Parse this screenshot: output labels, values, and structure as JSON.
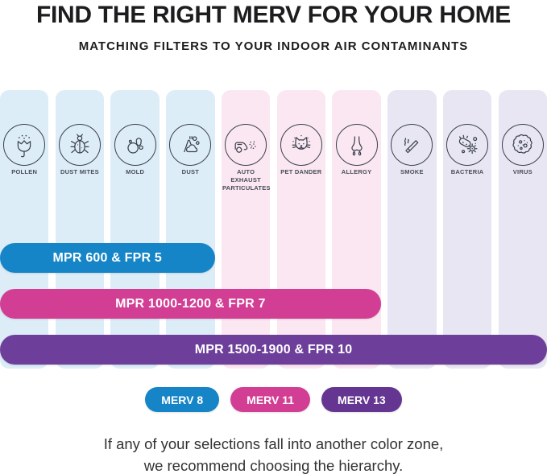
{
  "header": {
    "title": "FIND THE RIGHT MERV FOR YOUR HOME",
    "subtitle": "MATCHING FILTERS TO YOUR INDOOR AIR CONTAMINANTS"
  },
  "chart_data": {
    "type": "table",
    "title": "FIND THE RIGHT MERV FOR YOUR HOME",
    "subtitle": "MATCHING FILTERS TO YOUR INDOOR AIR CONTAMINANTS",
    "contaminants": [
      {
        "label": "POLLEN",
        "icon": "pollen-icon",
        "column_color": "#ddedf8"
      },
      {
        "label": "DUST MITES",
        "icon": "dust-mites-icon",
        "column_color": "#ddedf8"
      },
      {
        "label": "MOLD",
        "icon": "mold-icon",
        "column_color": "#ddedf8"
      },
      {
        "label": "DUST",
        "icon": "dust-icon",
        "column_color": "#ddedf8"
      },
      {
        "label": "AUTO EXHAUST PARTICULATES",
        "icon": "auto-exhaust-icon",
        "column_color": "#fbe7f1"
      },
      {
        "label": "PET DANDER",
        "icon": "pet-dander-icon",
        "column_color": "#fbe7f1"
      },
      {
        "label": "ALLERGY",
        "icon": "allergy-icon",
        "column_color": "#fbe7f1"
      },
      {
        "label": "SMOKE",
        "icon": "smoke-icon",
        "column_color": "#e9e6f3"
      },
      {
        "label": "BACTERIA",
        "icon": "bacteria-icon",
        "column_color": "#e9e6f3"
      },
      {
        "label": "VIRUS",
        "icon": "virus-icon",
        "column_color": "#e9e6f3"
      }
    ],
    "zones": [
      {
        "label": "MPR 600 & FPR 5",
        "merv": "MERV 8",
        "color": "#1685c7",
        "covers": [
          "POLLEN",
          "DUST MITES",
          "MOLD",
          "DUST"
        ]
      },
      {
        "label": "MPR 1000-1200 & FPR 7",
        "merv": "MERV 11",
        "color": "#d23e94",
        "covers": [
          "POLLEN",
          "DUST MITES",
          "MOLD",
          "DUST",
          "AUTO EXHAUST PARTICULATES",
          "PET DANDER",
          "ALLERGY"
        ]
      },
      {
        "label": "MPR 1500-1900 & FPR 10",
        "merv": "MERV 13",
        "color": "#6d3f9b",
        "covers": [
          "POLLEN",
          "DUST MITES",
          "MOLD",
          "DUST",
          "AUTO EXHAUST PARTICULATES",
          "PET DANDER",
          "ALLERGY",
          "SMOKE",
          "BACTERIA",
          "VIRUS"
        ]
      }
    ],
    "legend_position": "bottom"
  },
  "legend": {
    "items": [
      {
        "label": "MERV 8",
        "color": "#1685c7"
      },
      {
        "label": "MERV 11",
        "color": "#d23e94"
      },
      {
        "label": "MERV 13",
        "color": "#643692"
      }
    ]
  },
  "footer": {
    "line1": "If any of your selections fall into another color zone,",
    "line2": "we recommend choosing the hierarchy."
  }
}
